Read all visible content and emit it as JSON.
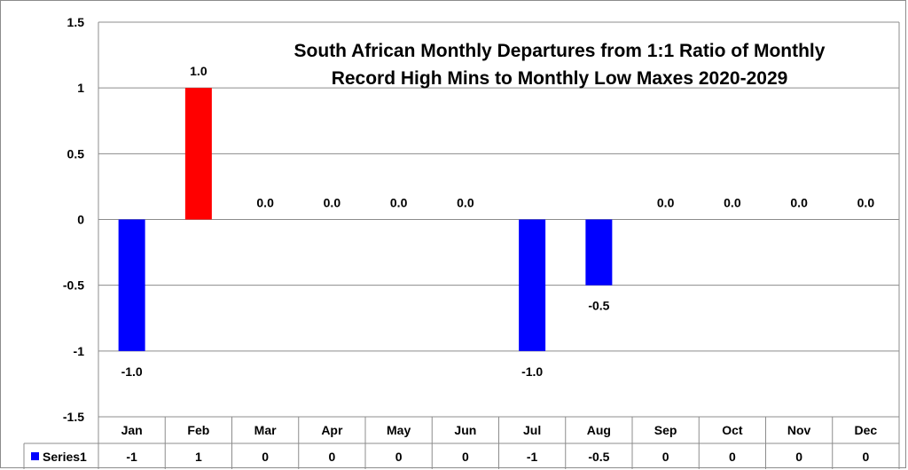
{
  "chart_data": {
    "type": "bar",
    "title_lines": [
      "South African Monthly Departures from 1:1 Ratio of Monthly",
      "Record High Mins to Monthly Low Maxes 2020-2029"
    ],
    "categories": [
      "Jan",
      "Feb",
      "Mar",
      "Apr",
      "May",
      "Jun",
      "Jul",
      "Aug",
      "Sep",
      "Oct",
      "Nov",
      "Dec"
    ],
    "series": [
      {
        "name": "Series1",
        "values": [
          -1,
          1,
          0,
          0,
          0,
          0,
          -1,
          -0.5,
          0,
          0,
          0,
          0
        ],
        "data_labels": [
          "-1.0",
          "1.0",
          "0.0",
          "0.0",
          "0.0",
          "0.0",
          "-1.0",
          "-0.5",
          "0.0",
          "0.0",
          "0.0",
          "0.0"
        ],
        "table_values": [
          "-1",
          "1",
          "0",
          "0",
          "0",
          "0",
          "-1",
          "-0.5",
          "0",
          "0",
          "0",
          "0"
        ]
      }
    ],
    "yticks": [
      "1.5",
      "1",
      "0.5",
      "0",
      "-0.5",
      "-1",
      "-1.5"
    ],
    "ylim": [
      -1.5,
      1.5
    ],
    "grid": true,
    "legend_in_data_table": true,
    "colors": {
      "positive": "#ff0000",
      "negative": "#0000ff",
      "grid": "#8c8c8c"
    }
  }
}
